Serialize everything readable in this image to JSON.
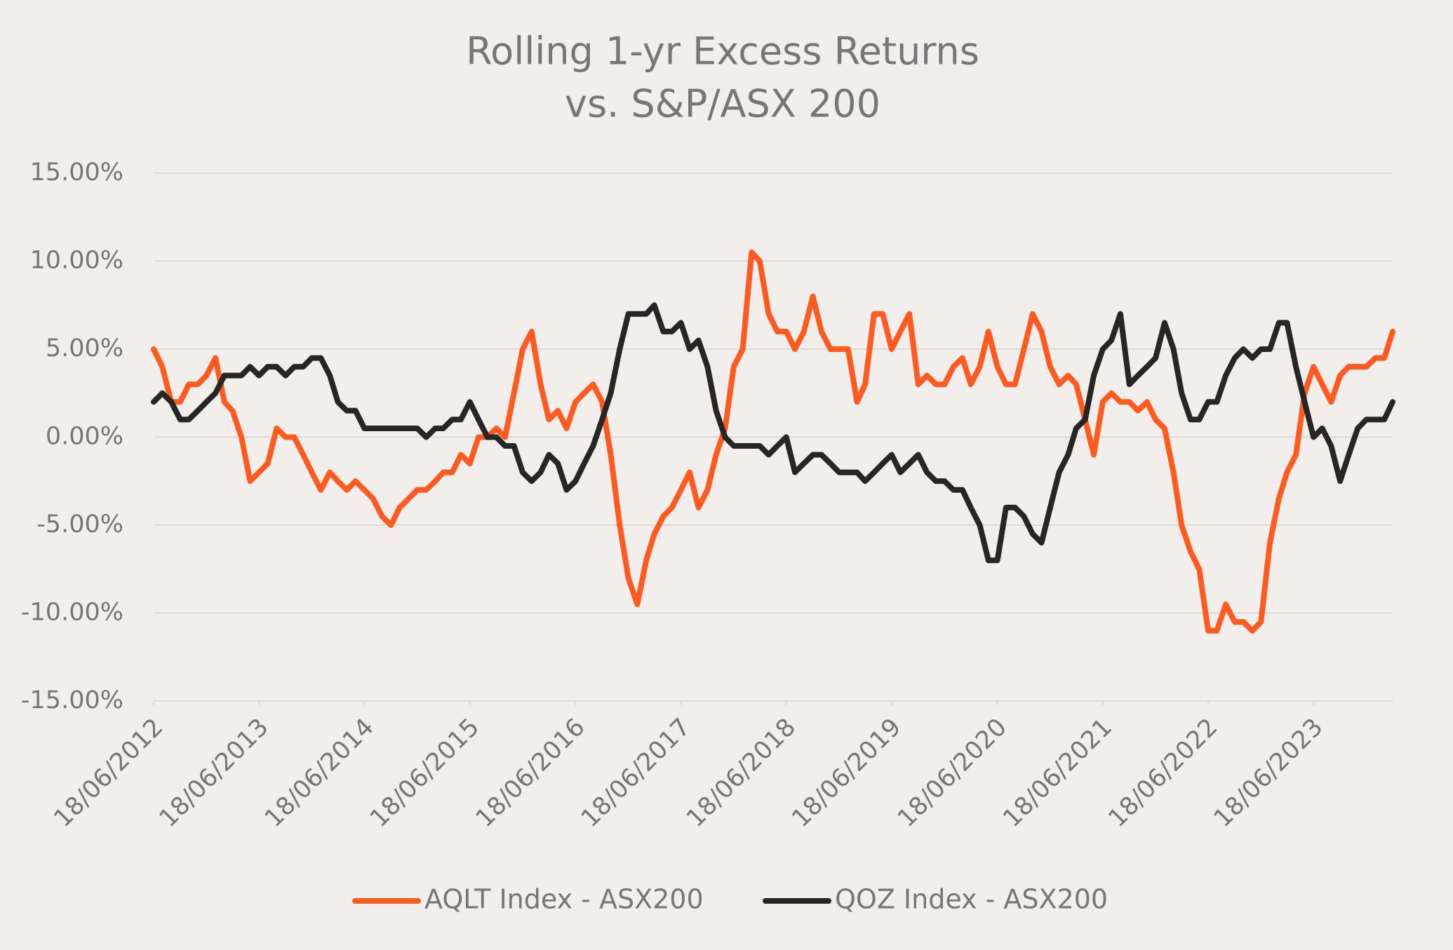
{
  "chart_data": {
    "type": "line",
    "title": [
      "Rolling 1-yr Excess Returns",
      "vs. S&P/ASX 200"
    ],
    "x": [
      "18/06/2012",
      "18/07/2012",
      "18/08/2012",
      "18/09/2012",
      "18/10/2012",
      "18/11/2012",
      "18/12/2012",
      "18/01/2013",
      "18/02/2013",
      "18/03/2013",
      "18/04/2013",
      "18/05/2013",
      "18/06/2013",
      "18/07/2013",
      "18/08/2013",
      "18/09/2013",
      "18/10/2013",
      "18/11/2013",
      "18/12/2013",
      "18/01/2014",
      "18/02/2014",
      "18/03/2014",
      "18/04/2014",
      "18/05/2014",
      "18/06/2014",
      "18/07/2014",
      "18/08/2014",
      "18/09/2014",
      "18/10/2014",
      "18/11/2014",
      "18/12/2014",
      "18/01/2015",
      "18/02/2015",
      "18/03/2015",
      "18/04/2015",
      "18/05/2015",
      "18/06/2015",
      "18/07/2015",
      "18/08/2015",
      "18/09/2015",
      "18/10/2015",
      "18/11/2015",
      "18/12/2015",
      "18/01/2016",
      "18/02/2016",
      "18/03/2016",
      "18/04/2016",
      "18/05/2016",
      "18/06/2016",
      "18/07/2016",
      "18/08/2016",
      "18/09/2016",
      "18/10/2016",
      "18/11/2016",
      "18/12/2016",
      "18/01/2017",
      "18/02/2017",
      "18/03/2017",
      "18/04/2017",
      "18/05/2017",
      "18/06/2017",
      "18/07/2017",
      "18/08/2017",
      "18/09/2017",
      "18/10/2017",
      "18/11/2017",
      "18/12/2017",
      "18/01/2018",
      "18/02/2018",
      "18/03/2018",
      "18/04/2018",
      "18/05/2018",
      "18/06/2018",
      "18/07/2018",
      "18/08/2018",
      "18/09/2018",
      "18/10/2018",
      "18/11/2018",
      "18/12/2018",
      "18/01/2019",
      "18/02/2019",
      "18/03/2019",
      "18/04/2019",
      "18/05/2019",
      "18/06/2019",
      "18/07/2019",
      "18/08/2019",
      "18/09/2019",
      "18/10/2019",
      "18/11/2019",
      "18/12/2019",
      "18/01/2020",
      "18/02/2020",
      "18/03/2020",
      "18/04/2020",
      "18/05/2020",
      "18/06/2020",
      "18/07/2020",
      "18/08/2020",
      "18/09/2020",
      "18/10/2020",
      "18/11/2020",
      "18/12/2020",
      "18/01/2021",
      "18/02/2021",
      "18/03/2021",
      "18/04/2021",
      "18/05/2021",
      "18/06/2021",
      "18/07/2021",
      "18/08/2021",
      "18/09/2021",
      "18/10/2021",
      "18/11/2021",
      "18/12/2021",
      "18/01/2022",
      "18/02/2022",
      "18/03/2022",
      "18/04/2022",
      "18/05/2022",
      "18/06/2022",
      "18/07/2022",
      "18/08/2022",
      "18/09/2022",
      "18/10/2022",
      "18/11/2022",
      "18/12/2022",
      "18/01/2023",
      "18/02/2023",
      "18/03/2023",
      "18/04/2023",
      "18/05/2023",
      "18/06/2023",
      "18/07/2023",
      "18/08/2023",
      "18/09/2023",
      "18/10/2023",
      "18/11/2023",
      "18/12/2023",
      "18/01/2024",
      "18/02/2024",
      "18/03/2024"
    ],
    "series": [
      {
        "name": "AQLT Index - ASX200",
        "color": "#ff5a1f",
        "values": [
          5,
          4,
          2,
          2,
          3,
          3,
          3.5,
          4.5,
          2,
          1.5,
          0,
          -2.5,
          -2,
          -1.5,
          0.5,
          0,
          0,
          -1,
          -2,
          -3,
          -2,
          -2.5,
          -3,
          -2.5,
          -3,
          -3.5,
          -4.5,
          -5,
          -4,
          -3.5,
          -3,
          -3,
          -2.5,
          -2,
          -2,
          -1,
          -1.5,
          0,
          0,
          0.5,
          0,
          2.5,
          5,
          6,
          3,
          1,
          1.5,
          0.5,
          2,
          2.5,
          3,
          2,
          -1,
          -5,
          -8,
          -9.5,
          -7,
          -5.5,
          -4.5,
          -4,
          -3,
          -2,
          -4,
          -3,
          -1,
          0.5,
          4,
          5,
          10.5,
          10,
          7,
          6,
          6,
          5,
          6,
          8,
          6,
          5,
          5,
          5,
          2,
          3,
          7,
          7,
          5,
          6,
          7,
          3,
          3.5,
          3,
          3,
          4,
          4.5,
          3,
          4,
          6,
          4,
          3,
          3,
          5,
          7,
          6,
          4,
          3,
          3.5,
          3,
          1,
          -1,
          2,
          2.5,
          2,
          2,
          1.5,
          2,
          1,
          0.5,
          -2,
          -5,
          -6.5,
          -7.5,
          -11,
          -11,
          -9.5,
          -10.5,
          -10.5,
          -11,
          -10.5,
          -6,
          -3.5,
          -2,
          -1,
          2.5,
          4,
          3,
          2,
          3.5,
          4,
          4,
          4,
          4.5,
          4.5,
          6
        ]
      },
      {
        "name": "QOZ Index - ASX200",
        "color": "#262626",
        "values": [
          2,
          2.5,
          2,
          1,
          1,
          1.5,
          2,
          2.5,
          3.5,
          3.5,
          3.5,
          4,
          3.5,
          4,
          4,
          3.5,
          4,
          4,
          4.5,
          4.5,
          3.5,
          2,
          1.5,
          1.5,
          0.5,
          0.5,
          0.5,
          0.5,
          0.5,
          0.5,
          0.5,
          0,
          0.5,
          0.5,
          1,
          1,
          2,
          1,
          0,
          0,
          -0.5,
          -0.5,
          -2,
          -2.5,
          -2,
          -1,
          -1.5,
          -3,
          -2.5,
          -1.5,
          -0.5,
          1,
          2.5,
          5,
          7,
          7,
          7,
          7.5,
          6,
          6,
          6.5,
          5,
          5.5,
          4,
          1.5,
          0,
          -0.5,
          -0.5,
          -0.5,
          -0.5,
          -1,
          -0.5,
          0,
          -2,
          -1.5,
          -1,
          -1,
          -1.5,
          -2,
          -2,
          -2,
          -2.5,
          -2,
          -1.5,
          -1,
          -2,
          -1.5,
          -1,
          -2,
          -2.5,
          -2.5,
          -3,
          -3,
          -4,
          -5,
          -7,
          -7,
          -4,
          -4,
          -4.5,
          -5.5,
          -6,
          -4,
          -2,
          -1,
          0.5,
          1,
          3.5,
          5,
          5.5,
          7,
          3,
          3.5,
          4,
          4.5,
          6.5,
          5,
          2.5,
          1,
          1,
          2,
          2,
          3.5,
          4.5,
          5,
          4.5,
          5,
          5,
          6.5,
          6.5,
          4,
          2,
          0,
          0.5,
          -0.5,
          -2.5,
          -1,
          0.5,
          1,
          1,
          1,
          2
        ]
      }
    ],
    "xlim": [
      "18/06/2012",
      "18/03/2024"
    ],
    "xticks": [
      "18/06/2012",
      "18/06/2013",
      "18/06/2014",
      "18/06/2015",
      "18/06/2016",
      "18/06/2017",
      "18/06/2018",
      "18/06/2019",
      "18/06/2020",
      "18/06/2021",
      "18/06/2022",
      "18/06/2023"
    ],
    "ylim": [
      -15,
      15
    ],
    "yticks": [
      {
        "value": -15,
        "label": "-15.00%"
      },
      {
        "value": -10,
        "label": "-10.00%"
      },
      {
        "value": -5,
        "label": "-5.00%"
      },
      {
        "value": 0,
        "label": "0.00%"
      },
      {
        "value": 5,
        "label": "5.00%"
      },
      {
        "value": 10,
        "label": "10.00%"
      },
      {
        "value": 15,
        "label": "15.00%"
      }
    ],
    "grid": true,
    "legend": "bottom"
  }
}
